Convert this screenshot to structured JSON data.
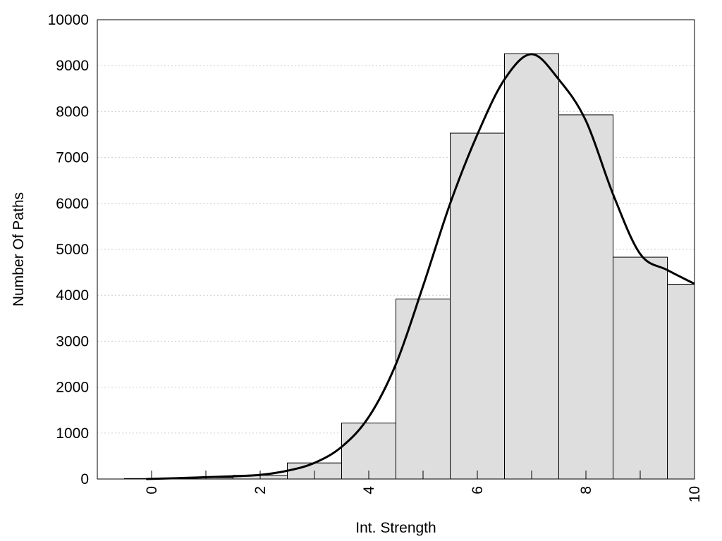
{
  "chart_data": {
    "type": "bar",
    "title": "",
    "xlabel": "Int. Strength",
    "ylabel": "Number Of Paths",
    "xlim": [
      -1,
      10
    ],
    "ylim": [
      0,
      10000
    ],
    "grid": "horizontal dotted",
    "legend": "none",
    "x_ticks": [
      "0",
      "2",
      "4",
      "6",
      "8",
      "10"
    ],
    "y_ticks": [
      "0",
      "1000",
      "2000",
      "3000",
      "4000",
      "5000",
      "6000",
      "7000",
      "8000",
      "9000",
      "10000"
    ],
    "categories": [
      "0",
      "1",
      "2",
      "3",
      "4",
      "5",
      "6",
      "7",
      "8",
      "9",
      "10"
    ],
    "series": [
      {
        "type": "bar",
        "values": [
          10,
          30,
          80,
          350,
          1220,
          3920,
          7530,
          9260,
          7930,
          4830,
          4240
        ]
      },
      {
        "type": "line",
        "x": [
          -0.1,
          0.5,
          1,
          1.5,
          2,
          2.5,
          3,
          3.5,
          4,
          4.5,
          5,
          5.5,
          6,
          6.5,
          7,
          7.5,
          8,
          8.5,
          9,
          9.5,
          10
        ],
        "y": [
          0,
          20,
          40,
          60,
          90,
          180,
          350,
          700,
          1350,
          2500,
          4200,
          6000,
          7500,
          8700,
          9250,
          8700,
          7800,
          6200,
          4900,
          4550,
          4250
        ]
      }
    ],
    "colors": {
      "bar_fill": "#dedede",
      "bar_stroke": "#000000",
      "line": "#000000",
      "grid": "#cccccc"
    }
  }
}
